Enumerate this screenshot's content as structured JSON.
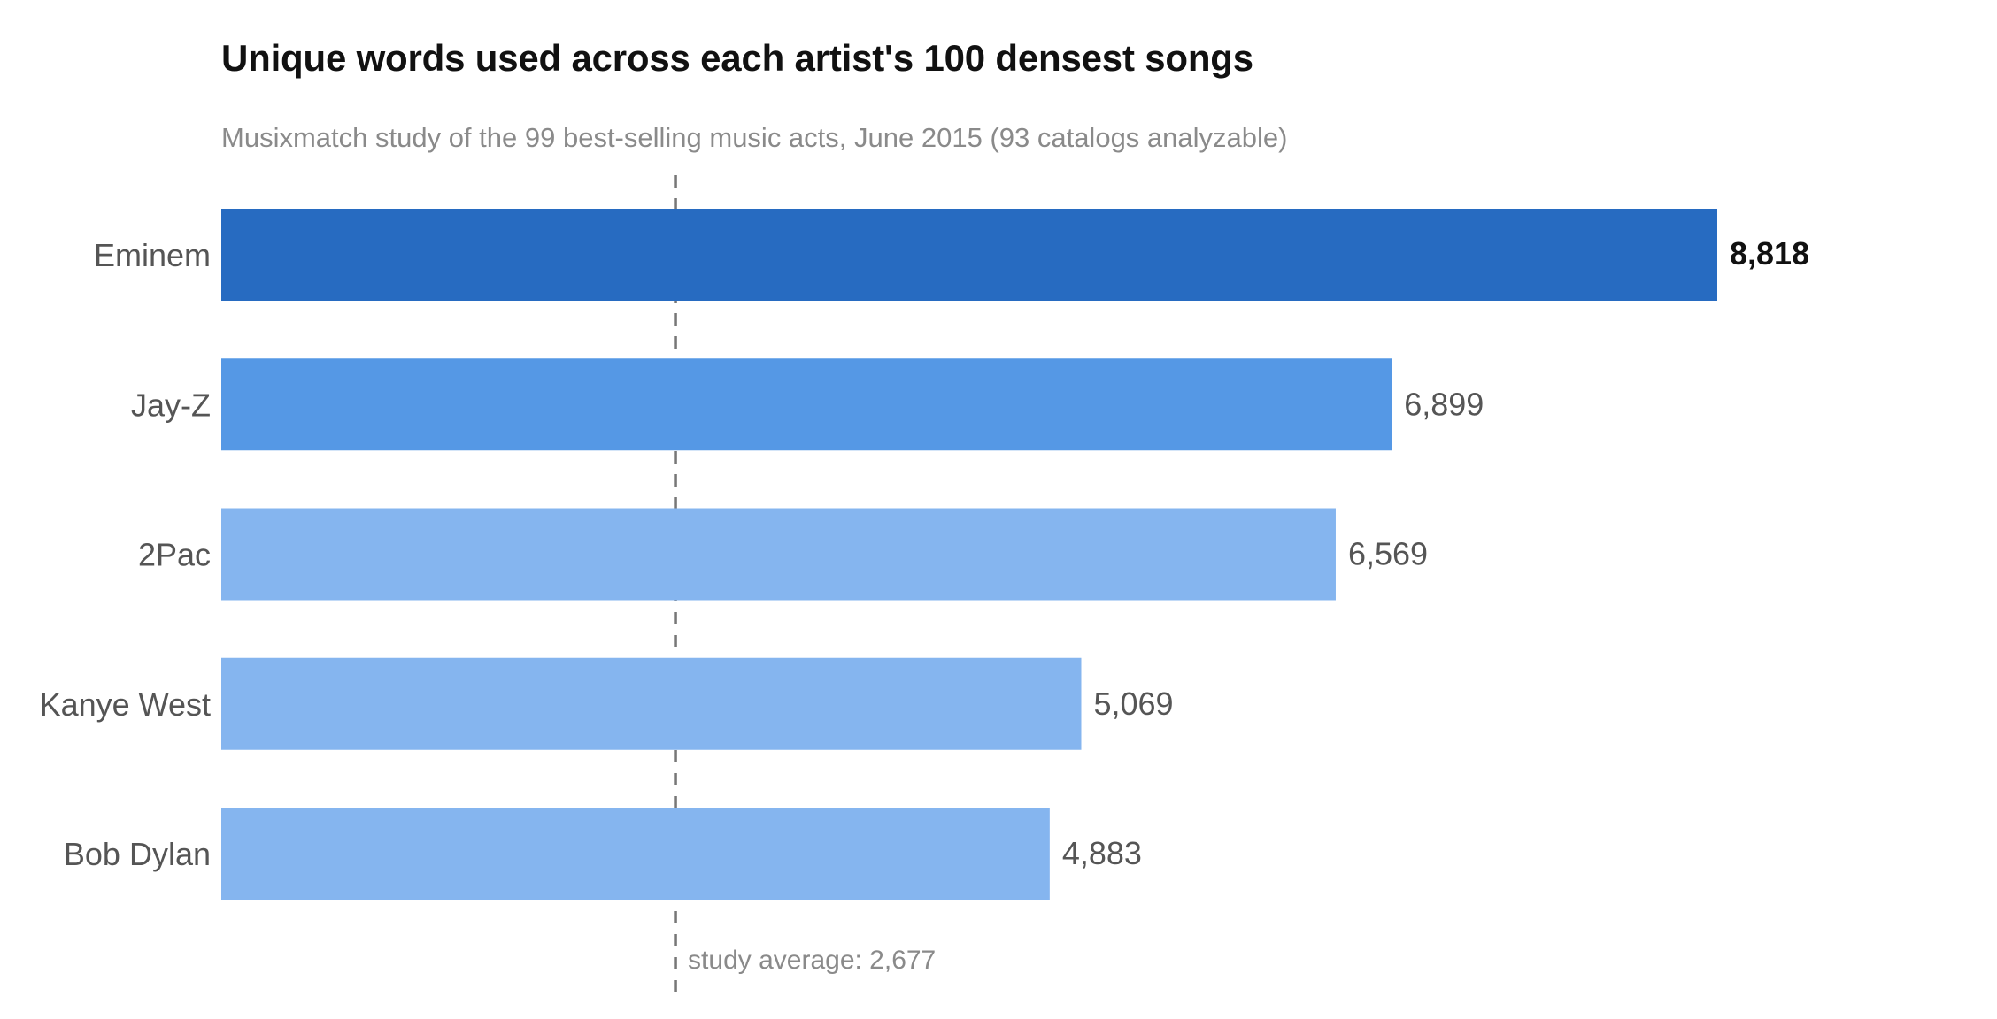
{
  "chart_data": {
    "type": "bar",
    "orientation": "horizontal",
    "title": "Unique words used across each artist's 100 densest songs",
    "subtitle": "Musixmatch study of the 99 best-selling music acts, June 2015 (93 catalogs analyzable)",
    "categories": [
      "Eminem",
      "Jay-Z",
      "2Pac",
      "Kanye West",
      "Bob Dylan"
    ],
    "values": [
      8818,
      6899,
      6569,
      5069,
      4883
    ],
    "value_labels": [
      "8,818",
      "6,899",
      "6,569",
      "5,069",
      "4,883"
    ],
    "bar_colors": [
      "#276bc1",
      "#5598e5",
      "#85b5ef",
      "#85b5ef",
      "#85b5ef"
    ],
    "highlight_index": 0,
    "xlim": [
      0,
      8818
    ],
    "grid": false,
    "legend": "none",
    "reference_line": {
      "value": 2677,
      "label": "study average: 2,677",
      "style": "dashed",
      "color": "#777777"
    }
  }
}
